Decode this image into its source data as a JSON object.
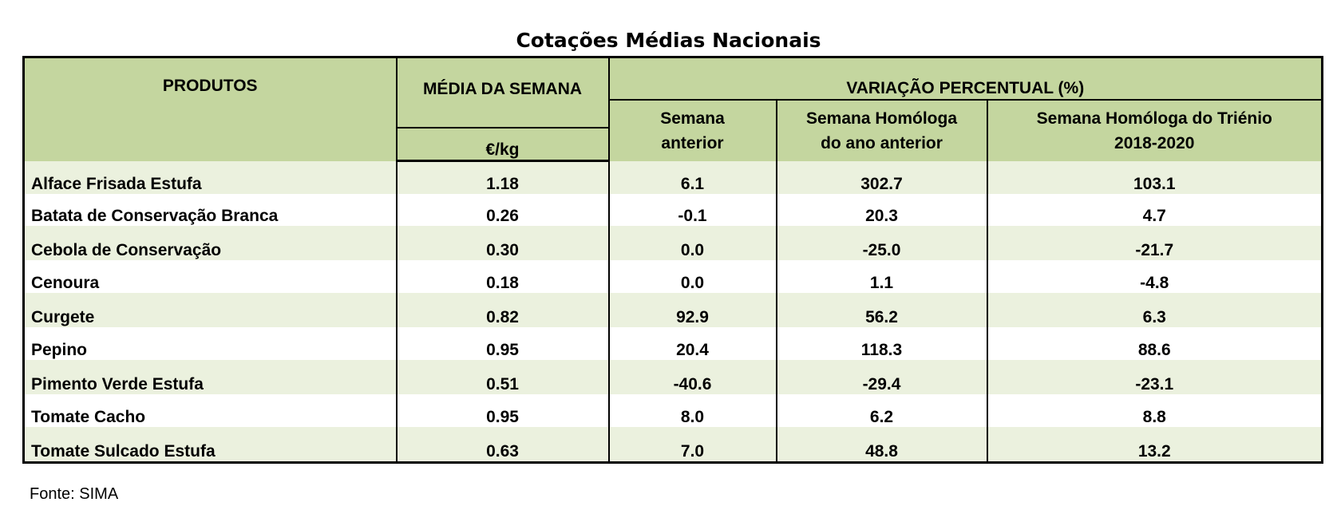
{
  "title": "Cotações Médias Nacionais",
  "headers": {
    "produtos": "PRODUTOS",
    "media_semana": "MÉDIA DA SEMANA",
    "unit": "€/kg",
    "variacao": "VARIAÇÃO PERCENTUAL (%)",
    "sem_anterior_l1": "Semana",
    "sem_anterior_l2": "anterior",
    "homologa_l1": "Semana Homóloga",
    "homologa_l2": "do ano anterior",
    "trienio_l1": "Semana Homóloga do Triénio",
    "trienio_l2": "2018-2020"
  },
  "rows": [
    {
      "produto": "Alface Frisada Estufa",
      "media": "1.18",
      "sem_anterior": "6.1",
      "homologa": "302.7",
      "trienio": "103.1"
    },
    {
      "produto": "Batata de Conservação Branca",
      "media": "0.26",
      "sem_anterior": "-0.1",
      "homologa": "20.3",
      "trienio": "4.7"
    },
    {
      "produto": "Cebola de Conservação",
      "media": "0.30",
      "sem_anterior": "0.0",
      "homologa": "-25.0",
      "trienio": "-21.7"
    },
    {
      "produto": "Cenoura",
      "media": "0.18",
      "sem_anterior": "0.0",
      "homologa": "1.1",
      "trienio": "-4.8"
    },
    {
      "produto": "Curgete",
      "media": "0.82",
      "sem_anterior": "92.9",
      "homologa": "56.2",
      "trienio": "6.3"
    },
    {
      "produto": "Pepino",
      "media": "0.95",
      "sem_anterior": "20.4",
      "homologa": "118.3",
      "trienio": "88.6"
    },
    {
      "produto": "Pimento Verde Estufa",
      "media": "0.51",
      "sem_anterior": "-40.6",
      "homologa": "-29.4",
      "trienio": "-23.1"
    },
    {
      "produto": "Tomate Cacho",
      "media": "0.95",
      "sem_anterior": "8.0",
      "homologa": "6.2",
      "trienio": "8.8"
    },
    {
      "produto": "Tomate Sulcado Estufa",
      "media": "0.63",
      "sem_anterior": "7.0",
      "homologa": "48.8",
      "trienio": "13.2"
    }
  ],
  "source": "Fonte: SIMA",
  "colors": {
    "header_bg": "#c4d69f",
    "row_alt_bg": "#ebf1de"
  }
}
